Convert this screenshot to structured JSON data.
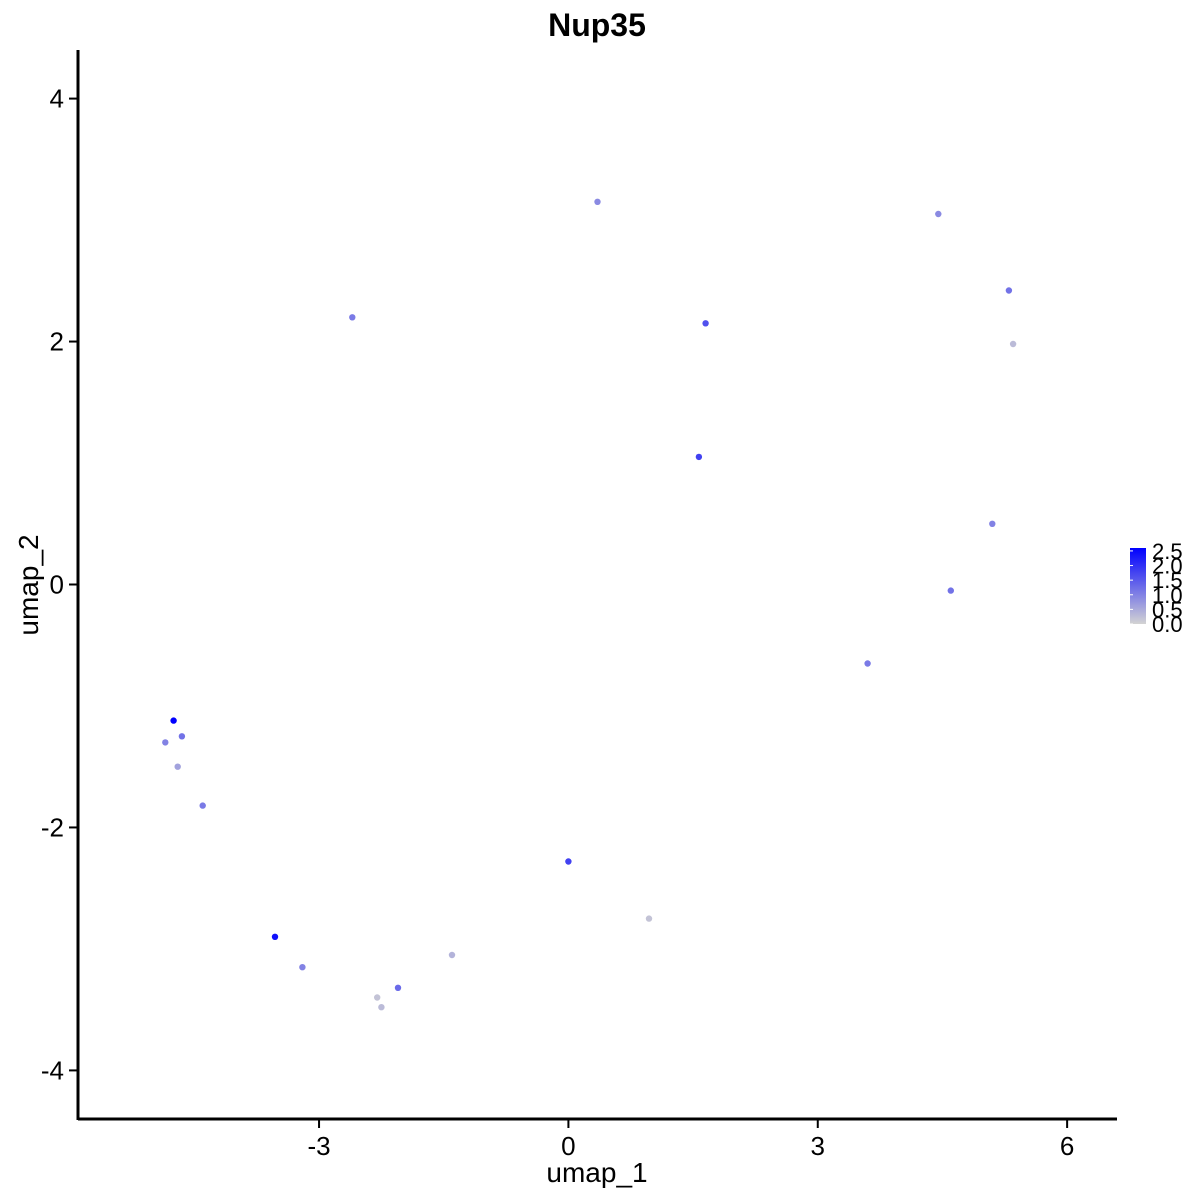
{
  "chart_data": {
    "type": "scatter",
    "title": "Nup35",
    "xlabel": "umap_1",
    "ylabel": "umap_2",
    "xlim": [
      -5.9,
      6.6
    ],
    "ylim": [
      -4.4,
      4.4
    ],
    "xticks": [
      -3,
      0,
      3,
      6
    ],
    "xtick_labels": [
      "-3",
      "0",
      "3",
      "6"
    ],
    "yticks": [
      -4,
      -2,
      0,
      2,
      4
    ],
    "ytick_labels": [
      "-4",
      "-2",
      "0",
      "2",
      "4"
    ],
    "grid": false,
    "legend": {
      "position": "right",
      "title": "",
      "breaks": [
        0.0,
        0.5,
        1.0,
        1.5,
        2.0,
        2.5
      ],
      "labels": [
        "0.0",
        "0.5",
        "1.0",
        "1.5",
        "2.0",
        "2.5"
      ],
      "colors": {
        "low": "#d3d3d3",
        "high": "#0000ff"
      }
    },
    "color_range": [
      0,
      2.6
    ],
    "points": [
      {
        "x": -4.75,
        "y": -1.12,
        "v": 2.6
      },
      {
        "x": -3.53,
        "y": -2.9,
        "v": 2.4
      },
      {
        "x": -4.65,
        "y": -1.25,
        "v": 1.2
      },
      {
        "x": -4.85,
        "y": -1.3,
        "v": 1.0
      },
      {
        "x": -4.7,
        "y": -1.5,
        "v": 0.6
      },
      {
        "x": -4.4,
        "y": -1.82,
        "v": 1.1
      },
      {
        "x": 0.35,
        "y": 3.15,
        "v": 0.9
      },
      {
        "x": 4.45,
        "y": 3.05,
        "v": 0.9
      },
      {
        "x": 1.65,
        "y": 2.15,
        "v": 1.6
      },
      {
        "x": 1.57,
        "y": 1.05,
        "v": 1.8
      },
      {
        "x": 0.0,
        "y": -2.28,
        "v": 1.8
      },
      {
        "x": -2.05,
        "y": -3.32,
        "v": 1.3
      },
      {
        "x": -2.25,
        "y": -3.48,
        "v": 0.3
      },
      {
        "x": -2.3,
        "y": -3.4,
        "v": 0.2
      },
      {
        "x": 0.97,
        "y": -2.75,
        "v": 0.2
      },
      {
        "x": -1.4,
        "y": -3.05,
        "v": 0.4
      },
      {
        "x": 5.3,
        "y": 2.42,
        "v": 1.2
      },
      {
        "x": 5.35,
        "y": 1.98,
        "v": 0.3
      },
      {
        "x": 5.1,
        "y": 0.5,
        "v": 1.0
      },
      {
        "x": 4.6,
        "y": -0.05,
        "v": 1.2
      },
      {
        "x": 3.6,
        "y": -0.65,
        "v": 1.1
      },
      {
        "x": -3.2,
        "y": -3.15,
        "v": 1.0
      },
      {
        "x": -2.6,
        "y": 2.2,
        "v": 1.1
      }
    ]
  }
}
